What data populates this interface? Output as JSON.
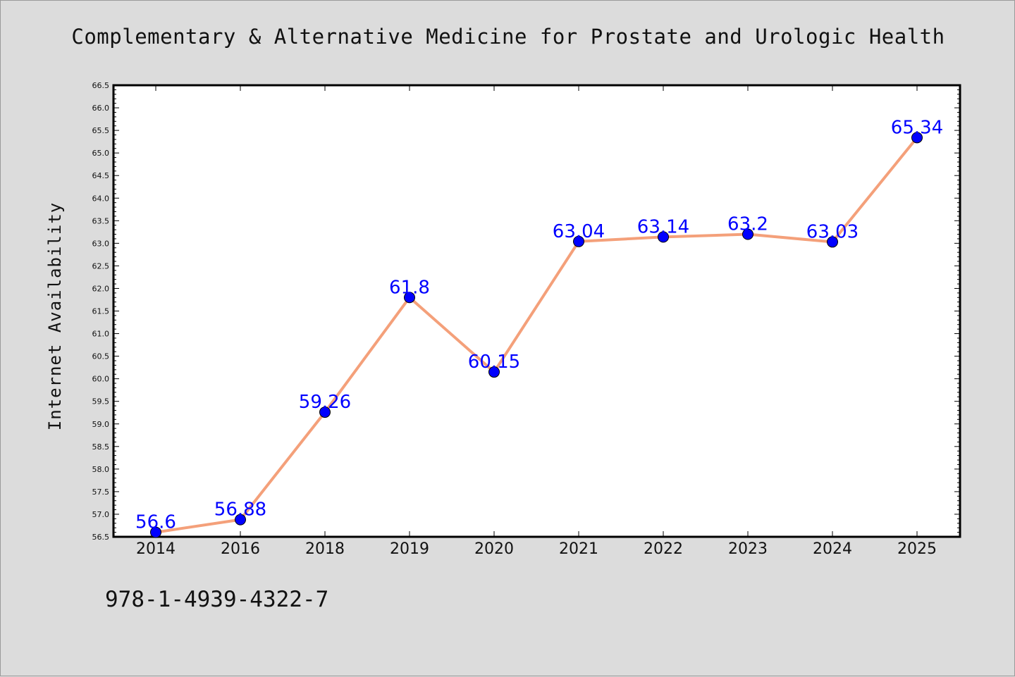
{
  "chart_data": {
    "type": "line",
    "title": "Complementary & Alternative Medicine for Prostate and Urologic Health",
    "xlabel": "",
    "ylabel": "Internet Availability",
    "categories": [
      "2014",
      "2016",
      "2018",
      "2019",
      "2020",
      "2021",
      "2022",
      "2023",
      "2024",
      "2025"
    ],
    "values": [
      56.6,
      56.88,
      59.26,
      61.8,
      60.15,
      63.04,
      63.14,
      63.2,
      63.03,
      65.34
    ],
    "data_labels": [
      "56.6",
      "56.88",
      "59.26",
      "61.8",
      "60.15",
      "63.04",
      "63.14",
      "63.2",
      "63.03",
      "65.34"
    ],
    "ylim": [
      56.5,
      66.5
    ],
    "yticks": [
      "56.5",
      "57.0",
      "57.5",
      "58.0",
      "58.5",
      "59.0",
      "59.5",
      "60.0",
      "60.5",
      "61.0",
      "61.5",
      "62.0",
      "62.5",
      "63.0",
      "63.5",
      "64.0",
      "64.5",
      "65.0",
      "65.5",
      "66.0",
      "66.5"
    ],
    "grid": false,
    "legend": "none",
    "colors": {
      "line": "#f4a07a",
      "marker": "#0000ff",
      "label": "#0000ff",
      "background": "#dcdcdc",
      "plot_background": "#ffffff"
    }
  },
  "footer": {
    "code": "978-1-4939-4322-7"
  }
}
